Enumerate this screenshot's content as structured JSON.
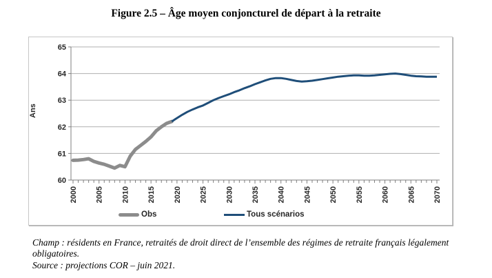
{
  "title": "Figure 2.5 – Âge moyen conjoncturel de départ à la retraite",
  "footer": {
    "champ": "Champ : résidents en France, retraités de droit direct de l’ensemble des régimes de retraite français légalement obligatoires.",
    "source": "Source : projections COR – juin 2021."
  },
  "colors": {
    "obs": "#8C8C8C",
    "scenarios": "#1F4E79",
    "gridline": "#AFAFAF",
    "axis": "#7F7F7F",
    "frame_border": "#C6C6C6"
  },
  "chart_data": {
    "type": "line",
    "title": "",
    "xlabel": "",
    "ylabel": "Ans",
    "ylim": [
      60,
      65
    ],
    "xlim": [
      2000,
      2070
    ],
    "y_ticks": [
      60,
      61,
      62,
      63,
      64,
      65
    ],
    "x_ticks": [
      2000,
      2005,
      2010,
      2015,
      2020,
      2025,
      2030,
      2035,
      2040,
      2045,
      2050,
      2055,
      2060,
      2065,
      2070
    ],
    "grid": "horizontal gridlines on",
    "legend_position": "bottom",
    "series": [
      {
        "name": "Obs",
        "color": "#8C8C8C",
        "stroke_width": 5,
        "x": [
          2000,
          2001,
          2002,
          2003,
          2004,
          2005,
          2006,
          2007,
          2008,
          2009,
          2010,
          2011,
          2012,
          2013,
          2014,
          2015,
          2016,
          2017,
          2018,
          2019
        ],
        "values": [
          60.74,
          60.75,
          60.77,
          60.8,
          60.7,
          60.64,
          60.59,
          60.52,
          60.45,
          60.55,
          60.5,
          60.9,
          61.15,
          61.3,
          61.45,
          61.62,
          61.85,
          62.0,
          62.13,
          62.2
        ]
      },
      {
        "name": "Tous scénarios",
        "color": "#1F4E79",
        "stroke_width": 3,
        "x": [
          2019,
          2020,
          2021,
          2022,
          2023,
          2024,
          2025,
          2026,
          2027,
          2028,
          2029,
          2030,
          2031,
          2032,
          2033,
          2034,
          2035,
          2036,
          2037,
          2038,
          2039,
          2040,
          2041,
          2042,
          2043,
          2044,
          2045,
          2046,
          2047,
          2048,
          2049,
          2050,
          2051,
          2052,
          2053,
          2054,
          2055,
          2056,
          2057,
          2058,
          2059,
          2060,
          2061,
          2062,
          2063,
          2064,
          2065,
          2066,
          2067,
          2068,
          2069,
          2070
        ],
        "values": [
          62.2,
          62.33,
          62.45,
          62.56,
          62.65,
          62.73,
          62.8,
          62.9,
          63.0,
          63.08,
          63.15,
          63.22,
          63.3,
          63.37,
          63.45,
          63.52,
          63.6,
          63.67,
          63.74,
          63.8,
          63.83,
          63.83,
          63.8,
          63.76,
          63.72,
          63.7,
          63.71,
          63.73,
          63.76,
          63.79,
          63.82,
          63.85,
          63.88,
          63.9,
          63.92,
          63.93,
          63.93,
          63.92,
          63.92,
          63.93,
          63.95,
          63.97,
          63.99,
          64.0,
          63.98,
          63.95,
          63.92,
          63.9,
          63.89,
          63.88,
          63.88,
          63.88
        ]
      }
    ]
  }
}
